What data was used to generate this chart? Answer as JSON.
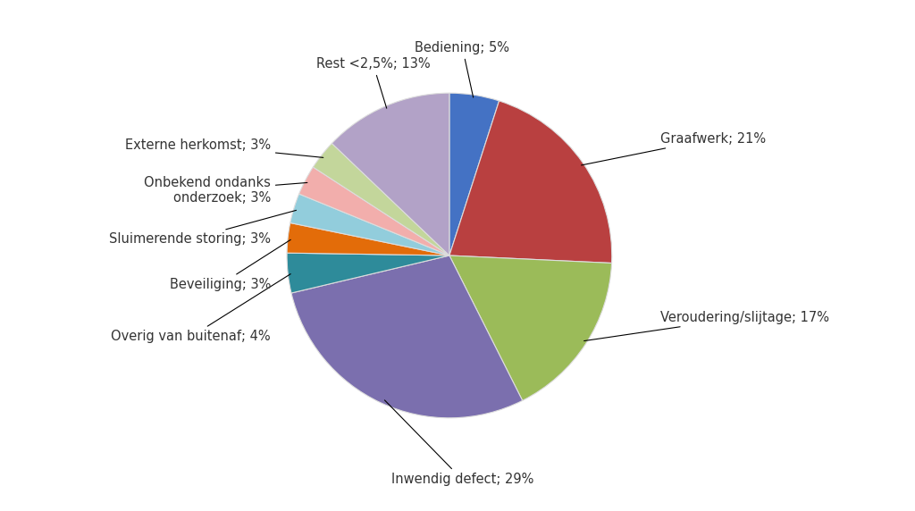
{
  "labels": [
    "Bediening; 5%",
    "Graafwerk; 21%",
    "Veroudering/slijtage; 17%",
    "Inwendig defect; 29%",
    "Overig van buitenaf; 4%",
    "Beveiliging; 3%",
    "Sluimerende storing; 3%",
    "Onbekend ondanks\nonderzoek; 3%",
    "Externe herkomst; 3%",
    "Rest <2,5%; 13%"
  ],
  "values": [
    5,
    21,
    17,
    29,
    4,
    3,
    3,
    3,
    3,
    13
  ],
  "colors": [
    "#4472C4",
    "#B94040",
    "#9BBB59",
    "#7B6FAE",
    "#2E8B9A",
    "#E36C09",
    "#92CDDC",
    "#F2AEAC",
    "#C3D69B",
    "#B2A2C7"
  ],
  "startangle": 90,
  "figsize": [
    10.24,
    5.72
  ],
  "dpi": 100,
  "background_color": "#FFFFFF",
  "font_size": 10.5
}
